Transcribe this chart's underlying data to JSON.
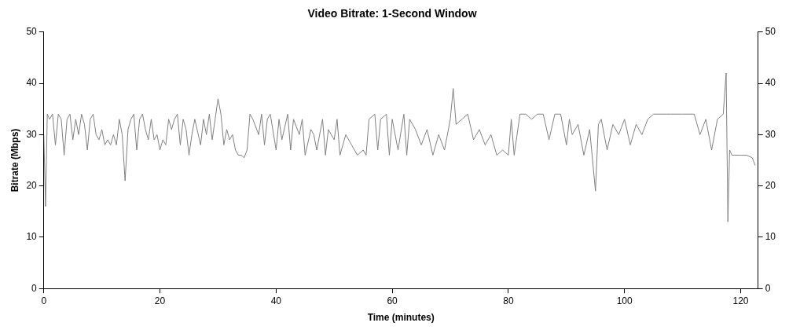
{
  "chart_data": {
    "type": "line",
    "title": "Video Bitrate: 1-Second Window",
    "xlabel": "Time (minutes)",
    "ylabel": "Bitrate (Mbps)",
    "xlim": [
      0,
      123
    ],
    "xticks": [
      0,
      20,
      40,
      60,
      80,
      100,
      120
    ],
    "ylim": [
      0,
      50
    ],
    "yticks": [
      0,
      10,
      20,
      30,
      40,
      50
    ],
    "y2lim": [
      0,
      50
    ],
    "y2ticks": [
      0,
      10,
      20,
      30,
      40,
      50
    ],
    "grid": false,
    "legend": false,
    "marker": "none",
    "line_style": "solid",
    "series": [
      {
        "color": "#808080",
        "x": [
          0,
          0.3,
          0.6,
          1,
          1.5,
          2,
          2.5,
          3,
          3.5,
          4,
          4.5,
          5,
          5.5,
          6,
          6.5,
          7,
          7.5,
          8,
          8.5,
          9,
          9.5,
          10,
          10.5,
          11,
          11.5,
          12,
          12.5,
          13,
          13.5,
          14,
          14.5,
          15,
          15.5,
          16,
          16.5,
          17,
          17.5,
          18,
          18.5,
          19,
          19.5,
          20,
          20.5,
          21,
          21.5,
          22,
          22.5,
          23,
          23.5,
          24,
          24.5,
          25,
          25.5,
          26,
          27,
          27.5,
          28,
          28.5,
          29,
          29.5,
          30,
          30.5,
          31,
          31.5,
          32,
          32.5,
          33,
          33.5,
          34,
          34.5,
          35,
          35.5,
          36,
          37,
          37.5,
          38,
          38.5,
          39,
          40,
          40.5,
          41,
          42,
          42.5,
          43,
          44,
          44.5,
          45,
          46,
          46.5,
          47,
          48,
          48.5,
          49,
          50,
          50.5,
          51,
          52,
          53,
          54,
          55,
          55.5,
          56,
          57,
          57.5,
          58,
          59,
          59.5,
          60,
          61,
          62,
          62.5,
          63,
          64,
          65,
          66,
          67,
          68,
          69,
          70,
          70.5,
          71,
          72,
          73,
          74,
          75,
          76,
          77,
          78,
          79,
          80,
          80.5,
          81,
          82,
          83,
          84,
          85,
          86,
          87,
          88,
          89,
          90,
          90.5,
          91,
          92,
          93,
          94,
          95,
          95.5,
          96,
          97,
          98,
          99,
          100,
          101,
          102,
          103,
          104,
          105,
          106,
          108,
          110,
          112,
          113,
          114,
          115,
          116,
          117,
          117.5,
          117.8,
          118.1,
          118.5,
          119,
          120,
          121,
          122,
          122.5
        ],
        "values": [
          30,
          16,
          34,
          33,
          34,
          28,
          34,
          33,
          26,
          33,
          34,
          29,
          33,
          30,
          34,
          32,
          27,
          33,
          34,
          30,
          29,
          31,
          28,
          29,
          28,
          30,
          28,
          33,
          30,
          21,
          31,
          33,
          34,
          27,
          33,
          34,
          31,
          29,
          33,
          29,
          30,
          27,
          29,
          28,
          33,
          31,
          33,
          34,
          28,
          33,
          31,
          26,
          30,
          33,
          28,
          33,
          30,
          34,
          29,
          33,
          37,
          34,
          28,
          31,
          29,
          30,
          27,
          26,
          26,
          25.5,
          27,
          34,
          33,
          30,
          34,
          28,
          33,
          34,
          27,
          33,
          29,
          34,
          27,
          33,
          30,
          33,
          26,
          31,
          30,
          27,
          33,
          26,
          31,
          29,
          33,
          26,
          30,
          28,
          26,
          27,
          26,
          33,
          34,
          27,
          33,
          34,
          26,
          33,
          27,
          34,
          26,
          33,
          31,
          28,
          31,
          26,
          30,
          27,
          33,
          39,
          32,
          33,
          34,
          29,
          31,
          28,
          30,
          26,
          27,
          26,
          33,
          26,
          34,
          34,
          33,
          34,
          34,
          29,
          34,
          34,
          28,
          33,
          30,
          32,
          26,
          31,
          19,
          32,
          33,
          27,
          32,
          30,
          33,
          28,
          32,
          30,
          33,
          34,
          34,
          34,
          34,
          34,
          30,
          33,
          27,
          33,
          34,
          42,
          13,
          27,
          26,
          26,
          26,
          26,
          25.5,
          24
        ]
      }
    ]
  }
}
